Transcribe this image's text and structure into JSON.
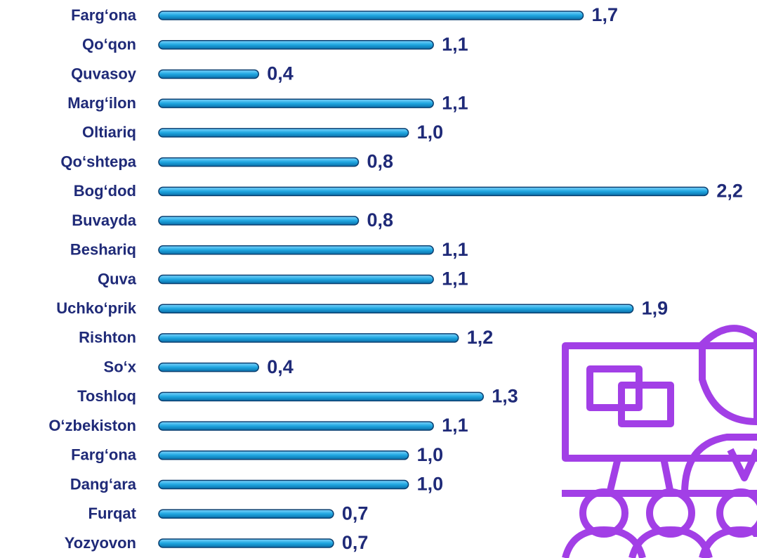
{
  "chart_data": {
    "type": "bar",
    "orientation": "horizontal",
    "categories": [
      "Farg‘ona",
      "Qo‘qon",
      "Quvasoy",
      "Marg‘ilon",
      "Oltiariq",
      "Qo‘shtepa",
      "Bog‘dod",
      "Buvayda",
      "Beshariq",
      "Quva",
      "Uchko‘prik",
      "Rishton",
      "So‘x",
      "Toshloq",
      "O‘zbekiston",
      "Farg‘ona",
      "Dang‘ara",
      "Furqat",
      "Yozyovon"
    ],
    "values": [
      1.7,
      1.1,
      0.4,
      1.1,
      1.0,
      0.8,
      2.2,
      0.8,
      1.1,
      1.1,
      1.9,
      1.2,
      0.4,
      1.3,
      1.1,
      1.0,
      1.0,
      0.7,
      0.7
    ],
    "value_labels": [
      "1,7",
      "1,1",
      "0,4",
      "1,1",
      "1,0",
      "0,8",
      "2,2",
      "0,8",
      "1,1",
      "1,1",
      "1,9",
      "1,2",
      "0,4",
      "1,3",
      "1,1",
      "1,0",
      "1,0",
      "0,7",
      "0,7"
    ],
    "color": "#1ea6e0"
  }
}
